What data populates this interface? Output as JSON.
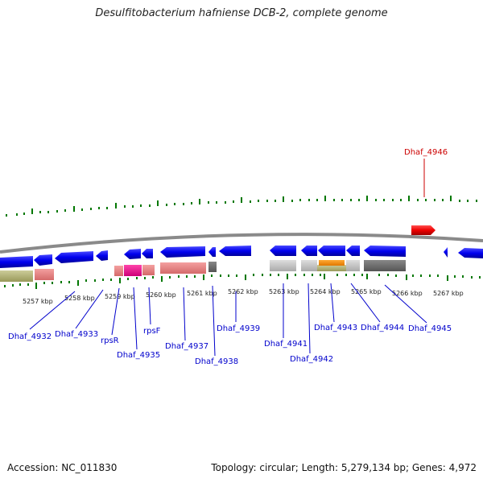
{
  "title": "Desulfitobacterium hafniense DCB-2, complete genome",
  "footer": {
    "accession": "Accession: NC_011830",
    "summary": "Topology: circular; Length: 5,279,134 bp; Genes: 4,972"
  },
  "scale_labels": [
    "5257 kbp",
    "5258 kbp",
    "5259 kbp",
    "5260 kbp",
    "5261 kbp",
    "5262 kbp",
    "5263 kbp",
    "5264 kbp",
    "5265 kbp",
    "5266 kbp",
    "5267 kbp"
  ],
  "gene_labels": {
    "dhaf_4932": "Dhaf_4932",
    "dhaf_4933": "Dhaf_4933",
    "rpsr": "rpsR",
    "dhaf_4935": "Dhaf_4935",
    "rpsf": "rpsF",
    "dhaf_4937": "Dhaf_4937",
    "dhaf_4938": "Dhaf_4938",
    "dhaf_4939": "Dhaf_4939",
    "dhaf_4941": "Dhaf_4941",
    "dhaf_4942": "Dhaf_4942",
    "dhaf_4943": "Dhaf_4943",
    "dhaf_4944": "Dhaf_4944",
    "dhaf_4945": "Dhaf_4945",
    "dhaf_4946": "Dhaf_4946"
  },
  "colors": {
    "cds": "#0000ee",
    "cds_highlight": "#ee0000",
    "tick": "#007700",
    "backbone": "#888888",
    "label": "#0000cc",
    "label_highlight": "#cc0000"
  }
}
